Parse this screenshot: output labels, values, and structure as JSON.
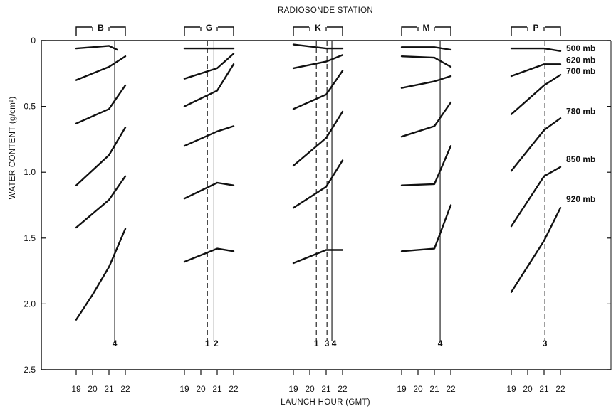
{
  "chart_data": {
    "type": "line",
    "title": "RADIOSONDE STATION",
    "xlabel": "LAUNCH HOUR (GMT)",
    "ylabel": "WATER CONTENT (g/cm²)",
    "ylim": [
      2.5,
      0
    ],
    "y_ticks": [
      "0",
      "0.5",
      "1.0",
      "1.5",
      "2.0",
      "2.5"
    ],
    "x_ticks": [
      "19",
      "20",
      "21",
      "22"
    ],
    "levels": [
      "500 mb",
      "620 mb",
      "700 mb",
      "780 mb",
      "850 mb",
      "920 mb"
    ],
    "stations": [
      {
        "name": "B",
        "run_lines": [
          {
            "label": "4",
            "hour": 21.35,
            "style": "solid"
          }
        ],
        "series": [
          {
            "x": [
              19,
              20,
              21,
              21.5
            ],
            "y": [
              0.06,
              0.05,
              0.04,
              0.07
            ]
          },
          {
            "x": [
              19,
              21,
              22
            ],
            "y": [
              0.3,
              0.2,
              0.12
            ]
          },
          {
            "x": [
              19,
              21,
              22
            ],
            "y": [
              0.63,
              0.52,
              0.34
            ]
          },
          {
            "x": [
              19,
              21,
              22
            ],
            "y": [
              1.1,
              0.87,
              0.66
            ]
          },
          {
            "x": [
              19,
              21,
              22
            ],
            "y": [
              1.42,
              1.21,
              1.03
            ]
          },
          {
            "x": [
              19,
              20,
              21,
              22
            ],
            "y": [
              2.12,
              1.93,
              1.72,
              1.43
            ]
          }
        ]
      },
      {
        "name": "G",
        "run_lines": [
          {
            "label": "1",
            "hour": 20.4,
            "style": "dashed"
          },
          {
            "label": "2",
            "hour": 20.8,
            "style": "solid"
          }
        ],
        "series": [
          {
            "x": [
              19,
              21,
              22
            ],
            "y": [
              0.06,
              0.06,
              0.06
            ]
          },
          {
            "x": [
              19,
              21,
              22
            ],
            "y": [
              0.29,
              0.21,
              0.1
            ]
          },
          {
            "x": [
              19,
              21,
              22
            ],
            "y": [
              0.5,
              0.38,
              0.18
            ]
          },
          {
            "x": [
              19,
              21,
              22
            ],
            "y": [
              0.8,
              0.69,
              0.65
            ]
          },
          {
            "x": [
              19,
              21,
              22
            ],
            "y": [
              1.2,
              1.08,
              1.1
            ]
          },
          {
            "x": [
              19,
              21,
              22
            ],
            "y": [
              1.68,
              1.58,
              1.6
            ]
          }
        ]
      },
      {
        "name": "K",
        "run_lines": [
          {
            "label": "1",
            "hour": 20.4,
            "style": "dashed"
          },
          {
            "label": "3",
            "hour": 21.05,
            "style": "dashed"
          },
          {
            "label": "4",
            "hour": 21.35,
            "style": "solid"
          }
        ],
        "series": [
          {
            "x": [
              19,
              21,
              22
            ],
            "y": [
              0.03,
              0.06,
              0.06
            ]
          },
          {
            "x": [
              19,
              21,
              22
            ],
            "y": [
              0.21,
              0.16,
              0.11
            ]
          },
          {
            "x": [
              19,
              21,
              22
            ],
            "y": [
              0.52,
              0.41,
              0.23
            ]
          },
          {
            "x": [
              19,
              21,
              22
            ],
            "y": [
              0.95,
              0.74,
              0.54
            ]
          },
          {
            "x": [
              19,
              21,
              22
            ],
            "y": [
              1.27,
              1.11,
              0.91
            ]
          },
          {
            "x": [
              19,
              21,
              22
            ],
            "y": [
              1.69,
              1.59,
              1.59
            ]
          }
        ]
      },
      {
        "name": "M",
        "run_lines": [
          {
            "label": "4",
            "hour": 21.35,
            "style": "solid"
          }
        ],
        "series": [
          {
            "x": [
              19,
              21,
              22
            ],
            "y": [
              0.05,
              0.05,
              0.07
            ]
          },
          {
            "x": [
              19,
              21,
              22
            ],
            "y": [
              0.12,
              0.13,
              0.2
            ]
          },
          {
            "x": [
              19,
              21,
              22
            ],
            "y": [
              0.36,
              0.31,
              0.27
            ]
          },
          {
            "x": [
              19,
              21,
              22
            ],
            "y": [
              0.73,
              0.65,
              0.47
            ]
          },
          {
            "x": [
              19,
              21,
              22
            ],
            "y": [
              1.1,
              1.09,
              0.8
            ]
          },
          {
            "x": [
              19,
              21,
              22
            ],
            "y": [
              1.6,
              1.58,
              1.25
            ]
          }
        ]
      },
      {
        "name": "P",
        "run_lines": [
          {
            "label": "3",
            "hour": 21.05,
            "style": "dashed"
          }
        ],
        "series": [
          {
            "x": [
              19,
              21,
              22
            ],
            "y": [
              0.06,
              0.06,
              0.08
            ]
          },
          {
            "x": [
              19,
              21,
              22
            ],
            "y": [
              0.27,
              0.18,
              0.18
            ]
          },
          {
            "x": [
              19,
              21,
              22
            ],
            "y": [
              0.56,
              0.34,
              0.26
            ]
          },
          {
            "x": [
              19,
              21,
              22
            ],
            "y": [
              0.99,
              0.68,
              0.59
            ]
          },
          {
            "x": [
              19,
              21,
              22
            ],
            "y": [
              1.41,
              1.03,
              0.96
            ]
          },
          {
            "x": [
              19,
              21,
              22
            ],
            "y": [
              1.91,
              1.52,
              1.27
            ]
          }
        ]
      }
    ]
  }
}
